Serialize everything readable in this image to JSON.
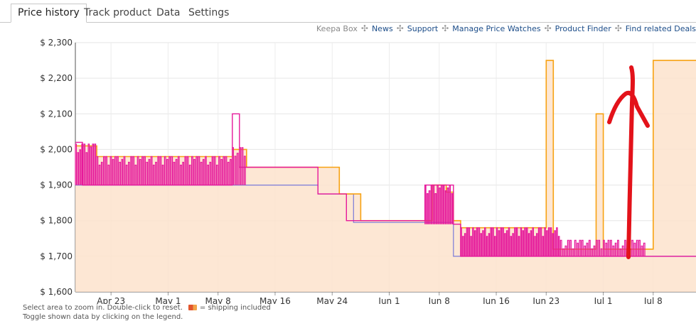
{
  "tabs": [
    {
      "label": "Price history",
      "active": true
    },
    {
      "label": "Track product",
      "active": false
    },
    {
      "label": "Data",
      "active": false
    },
    {
      "label": "Settings",
      "active": false
    }
  ],
  "links": {
    "keepa_box": "Keepa Box",
    "news": "News",
    "support": "Support",
    "manage_price_watches": "Manage Price Watches",
    "product_finder": "Product Finder",
    "find_related_deals": "Find related Deals"
  },
  "footer": {
    "zoom_hint": "Select area to zoom in. Double-click to reset.",
    "shipping_note": "= shipping included",
    "toggle_hint": "Toggle shown data by clicking on the legend."
  },
  "colors": {
    "amazon": "#f7a212",
    "new": "#e6199b",
    "used": "#7a7ad8",
    "fill": "#fde3cc",
    "annotation": "#e3121a"
  },
  "chart_data": {
    "type": "line",
    "ylim": [
      1600,
      2300
    ],
    "yticks": [
      1600,
      1700,
      1800,
      1900,
      2000,
      2100,
      2200,
      2300
    ],
    "ytick_labels": [
      "$ 1,600",
      "$ 1,700",
      "$ 1,800",
      "$ 1,900",
      "$ 2,000",
      "$ 2,100",
      "$ 2,200",
      "$ 2,300"
    ],
    "xlim": [
      "2020-04-18",
      "2020-07-14"
    ],
    "xtick_dates": [
      "2020-04-23",
      "2020-05-01",
      "2020-05-08",
      "2020-05-16",
      "2020-05-24",
      "2020-06-01",
      "2020-06-08",
      "2020-06-16",
      "2020-06-23",
      "2020-07-01",
      "2020-07-08"
    ],
    "xtick_labels": [
      "Apr 23",
      "May 1",
      "May 8",
      "May 16",
      "May 24",
      "Jun 1",
      "Jun 8",
      "Jun 16",
      "Jun 23",
      "Jul 1",
      "Jul 8"
    ],
    "grid": true,
    "series": [
      {
        "style": "orange step line with filled area",
        "points": [
          [
            "2020-04-18",
            2010
          ],
          [
            "2020-04-21",
            1980
          ],
          [
            "2020-05-10",
            2000
          ],
          [
            "2020-05-12",
            1950
          ],
          [
            "2020-05-24",
            1950
          ],
          [
            "2020-05-25",
            1875
          ],
          [
            "2020-05-28",
            1800
          ],
          [
            "2020-06-07",
            1900
          ],
          [
            "2020-06-09",
            1880
          ],
          [
            "2020-06-10",
            1800
          ],
          [
            "2020-06-11",
            1780
          ],
          [
            "2020-06-23",
            1780
          ],
          [
            "2020-06-23",
            2250
          ],
          [
            "2020-06-24",
            1720
          ],
          [
            "2020-06-30",
            1720
          ],
          [
            "2020-06-30",
            2100
          ],
          [
            "2020-07-01",
            1720
          ],
          [
            "2020-07-07",
            1720
          ],
          [
            "2020-07-08",
            2250
          ],
          [
            "2020-07-14",
            2250
          ]
        ]
      },
      {
        "style": "pink fluctuating step line",
        "points": [
          [
            "2020-04-18",
            2020
          ],
          [
            "2020-04-19",
            1900
          ],
          [
            "2020-05-10",
            1900
          ],
          [
            "2020-05-10",
            2100
          ],
          [
            "2020-05-11",
            1950
          ],
          [
            "2020-05-22",
            1950
          ],
          [
            "2020-05-22",
            1875
          ],
          [
            "2020-05-26",
            1875
          ],
          [
            "2020-05-26",
            1800
          ],
          [
            "2020-06-05",
            1800
          ],
          [
            "2020-06-06",
            1900
          ],
          [
            "2020-06-10",
            1790
          ],
          [
            "2020-06-11",
            1700
          ],
          [
            "2020-07-14",
            1700
          ]
        ]
      },
      {
        "style": "purple step line",
        "points": [
          [
            "2020-04-18",
            1900
          ],
          [
            "2020-05-22",
            1900
          ],
          [
            "2020-05-22",
            1875
          ],
          [
            "2020-05-27",
            1875
          ],
          [
            "2020-05-27",
            1795
          ],
          [
            "2020-06-05",
            1795
          ],
          [
            "2020-06-10",
            1700
          ],
          [
            "2020-07-14",
            1700
          ]
        ]
      }
    ]
  }
}
